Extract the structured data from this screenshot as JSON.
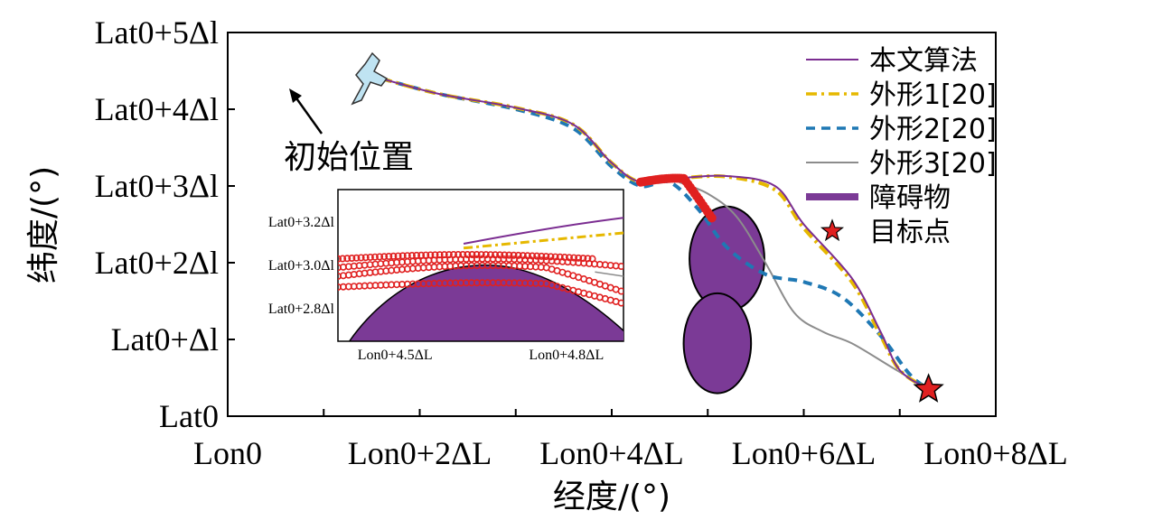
{
  "chart_data": {
    "type": "line",
    "xlabel": "经度/(°)",
    "ylabel": "纬度/(°)",
    "x_ticks": [
      {
        "v": 0,
        "label": "Lon0"
      },
      {
        "v": 2,
        "label": "Lon0+2ΔL"
      },
      {
        "v": 4,
        "label": "Lon0+4ΔL"
      },
      {
        "v": 6,
        "label": "Lon0+6ΔL"
      },
      {
        "v": 8,
        "label": "Lon0+8ΔL"
      }
    ],
    "y_ticks": [
      {
        "v": 0,
        "label": "Lat0"
      },
      {
        "v": 1,
        "label": "Lat0+Δl"
      },
      {
        "v": 2,
        "label": "Lat0+2Δl"
      },
      {
        "v": 3,
        "label": "Lat0+3Δl"
      },
      {
        "v": 4,
        "label": "Lat0+4Δl"
      },
      {
        "v": 5,
        "label": "Lat0+5Δl"
      }
    ],
    "xlim": [
      0,
      8
    ],
    "ylim": [
      0,
      5
    ],
    "legend_position": "top-right",
    "annotation": "初始位置",
    "series": [
      {
        "name": "本文算法",
        "color": "#7b2d91",
        "style": "solid",
        "points": [
          [
            1.6,
            4.4
          ],
          [
            2.2,
            4.2
          ],
          [
            3.0,
            4.02
          ],
          [
            3.6,
            3.8
          ],
          [
            4.0,
            3.3
          ],
          [
            4.3,
            3.05
          ],
          [
            4.7,
            3.1
          ],
          [
            5.2,
            3.13
          ],
          [
            5.7,
            3.0
          ],
          [
            6.0,
            2.5
          ],
          [
            6.5,
            1.8
          ],
          [
            6.8,
            1.1
          ],
          [
            7.0,
            0.6
          ],
          [
            7.3,
            0.35
          ]
        ]
      },
      {
        "name": "外形1[20]",
        "color": "#e6b800",
        "style": "dashdot",
        "points": [
          [
            1.6,
            4.4
          ],
          [
            2.2,
            4.2
          ],
          [
            3.0,
            4.02
          ],
          [
            3.6,
            3.8
          ],
          [
            4.0,
            3.3
          ],
          [
            4.3,
            3.05
          ],
          [
            4.7,
            3.1
          ],
          [
            5.2,
            3.12
          ],
          [
            5.7,
            2.95
          ],
          [
            6.0,
            2.45
          ],
          [
            6.5,
            1.75
          ],
          [
            6.8,
            1.05
          ],
          [
            7.0,
            0.6
          ],
          [
            7.3,
            0.35
          ]
        ]
      },
      {
        "name": "外形2[20]",
        "color": "#1f78b4",
        "style": "dashed",
        "points": [
          [
            1.6,
            4.4
          ],
          [
            2.2,
            4.2
          ],
          [
            3.0,
            4.0
          ],
          [
            3.6,
            3.75
          ],
          [
            4.0,
            3.25
          ],
          [
            4.3,
            3.0
          ],
          [
            4.6,
            3.05
          ],
          [
            4.9,
            2.7
          ],
          [
            5.2,
            2.2
          ],
          [
            5.6,
            1.85
          ],
          [
            6.0,
            1.75
          ],
          [
            6.4,
            1.55
          ],
          [
            6.8,
            1.05
          ],
          [
            7.1,
            0.55
          ],
          [
            7.3,
            0.35
          ]
        ]
      },
      {
        "name": "外形3[20]",
        "color": "#8c8c8c",
        "style": "solid",
        "points": [
          [
            4.7,
            3.05
          ],
          [
            5.0,
            2.9
          ],
          [
            5.3,
            2.6
          ],
          [
            5.6,
            2.0
          ],
          [
            5.9,
            1.35
          ],
          [
            6.2,
            1.1
          ],
          [
            6.5,
            0.95
          ],
          [
            6.9,
            0.65
          ],
          [
            7.3,
            0.35
          ]
        ]
      }
    ],
    "obstacles": [
      {
        "cx": 5.2,
        "cy": 2.05,
        "rx": 0.5,
        "ry": 1.1
      },
      {
        "cx": 5.1,
        "cy": 0.95,
        "rx": 0.45,
        "ry": 1.05
      }
    ],
    "start": [
      1.6,
      4.4
    ],
    "target": [
      7.3,
      0.35
    ],
    "inset": {
      "x_ticks": [
        {
          "v": 4.5,
          "label": "Lon0+4.5ΔL"
        },
        {
          "v": 4.8,
          "label": "Lon0+4.8ΔL"
        }
      ],
      "y_ticks": [
        {
          "v": 3.2,
          "label": "Lat0+3.2Δl"
        },
        {
          "v": 3.0,
          "label": "Lat0+3.0Δl"
        },
        {
          "v": 2.8,
          "label": "Lat0+2.8Δl"
        }
      ]
    }
  },
  "legend": {
    "items": [
      {
        "label": "本文算法",
        "color": "#7b2d91",
        "kind": "line",
        "dash": ""
      },
      {
        "label": "外形1[20]",
        "color": "#e6b800",
        "kind": "line",
        "dash": "12,5,3,5"
      },
      {
        "label": "外形2[20]",
        "color": "#1f78b4",
        "kind": "line",
        "dash": "10,7"
      },
      {
        "label": "外形3[20]",
        "color": "#8c8c8c",
        "kind": "line",
        "dash": ""
      },
      {
        "label": "障碍物",
        "color": "#7b3a96",
        "kind": "thick",
        "dash": ""
      },
      {
        "label": "目标点",
        "color": "#e02020",
        "kind": "star",
        "dash": ""
      }
    ]
  }
}
